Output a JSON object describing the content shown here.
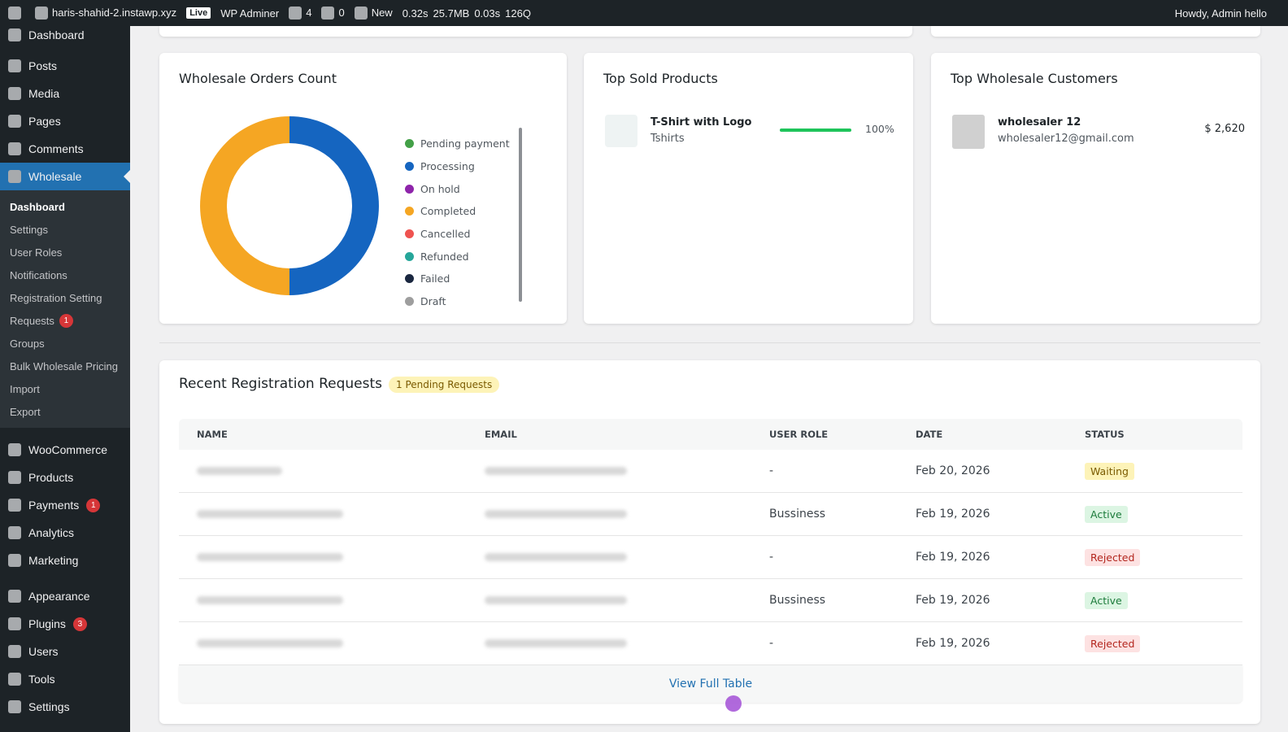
{
  "admin_bar": {
    "site": "haris-shahid-2.instawp.xyz",
    "live": "Live",
    "plugin": "WP Adminer",
    "updates": "4",
    "comments": "0",
    "new": "New",
    "stats": [
      "0.32s",
      "25.7MB",
      "0.03s",
      "126Q"
    ],
    "greeting": "Howdy, Admin hello"
  },
  "sidebar": {
    "groups": [
      [
        {
          "label": "Dashboard"
        }
      ],
      [
        {
          "label": "Posts"
        },
        {
          "label": "Media"
        },
        {
          "label": "Pages"
        },
        {
          "label": "Comments"
        },
        {
          "label": "Wholesale",
          "current": true,
          "submenu": [
            {
              "label": "Dashboard",
              "current": true
            },
            {
              "label": "Settings"
            },
            {
              "label": "User Roles"
            },
            {
              "label": "Notifications"
            },
            {
              "label": "Registration Setting"
            },
            {
              "label": "Requests",
              "badge": "1"
            },
            {
              "label": "Groups"
            },
            {
              "label": "Bulk Wholesale Pricing"
            },
            {
              "label": "Import"
            },
            {
              "label": "Export"
            }
          ]
        }
      ],
      [
        {
          "label": "WooCommerce"
        },
        {
          "label": "Products"
        },
        {
          "label": "Payments",
          "badge": "1"
        },
        {
          "label": "Analytics"
        },
        {
          "label": "Marketing"
        }
      ],
      [
        {
          "label": "Appearance"
        },
        {
          "label": "Plugins",
          "badge": "3"
        },
        {
          "label": "Users"
        },
        {
          "label": "Tools"
        },
        {
          "label": "Settings"
        }
      ]
    ]
  },
  "orders_card": {
    "title": "Wholesale Orders Count",
    "chart_data": {
      "type": "pie",
      "categories": [
        "Pending payment",
        "Processing",
        "On hold",
        "Completed",
        "Cancelled",
        "Refunded",
        "Failed",
        "Draft"
      ],
      "values": [
        0,
        50,
        0,
        50,
        0,
        0,
        0,
        0
      ],
      "colors": [
        "#43a047",
        "#1565c0",
        "#8e24aa",
        "#f5a623",
        "#ef5350",
        "#26a69a",
        "#1a2740",
        "#9e9e9e"
      ]
    }
  },
  "products_card": {
    "title": "Top Sold Products",
    "items": [
      {
        "name": "T-Shirt with Logo",
        "category": "Tshirts",
        "percent": 100,
        "percent_label": "100%"
      }
    ]
  },
  "customers_card": {
    "title": "Top Wholesale Customers",
    "items": [
      {
        "name": "wholesaler 12",
        "email": "wholesaler12@gmail.com",
        "amount": "$ 2,620"
      }
    ]
  },
  "requests": {
    "title": "Recent Registration Requests",
    "badge": "1 Pending Requests",
    "columns": [
      "NAME",
      "EMAIL",
      "USER ROLE",
      "DATE",
      "STATUS"
    ],
    "rows": [
      {
        "role": "-",
        "date": "Feb 20, 2026",
        "status": {
          "label": "Waiting",
          "color": "#7a5a00",
          "background": "#fdf3b8"
        }
      },
      {
        "role": "Bussiness",
        "date": "Feb 19, 2026",
        "status": {
          "label": "Active",
          "color": "#1b7a3a",
          "background": "#dcf5e3"
        }
      },
      {
        "role": "-",
        "date": "Feb 19, 2026",
        "status": {
          "label": "Rejected",
          "color": "#b3261e",
          "background": "#fde2e2"
        }
      },
      {
        "role": "Bussiness",
        "date": "Feb 19, 2026",
        "status": {
          "label": "Active",
          "color": "#1b7a3a",
          "background": "#dcf5e3"
        }
      },
      {
        "role": "-",
        "date": "Feb 19, 2026",
        "status": {
          "label": "Rejected",
          "color": "#b3261e",
          "background": "#fde2e2"
        }
      }
    ],
    "link": "View Full Table"
  }
}
